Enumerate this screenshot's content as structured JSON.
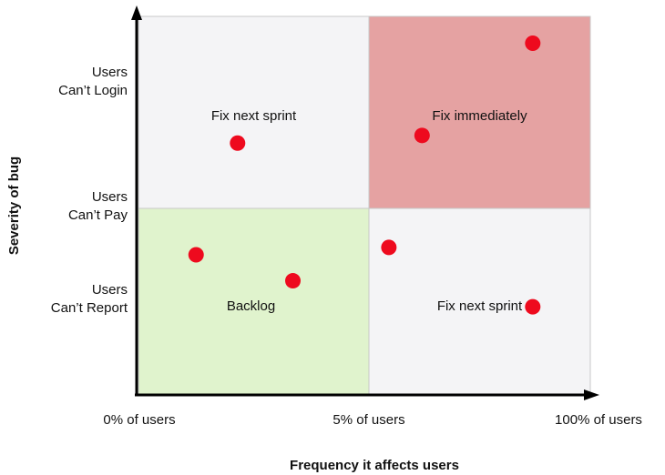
{
  "chart_data": {
    "type": "scatter",
    "xlabel": "Frequency it affects users",
    "ylabel": "Severity of bug",
    "x_ticks": [
      {
        "value": 0,
        "label": "0% of users"
      },
      {
        "value": 1,
        "label": "5% of users"
      },
      {
        "value": 2,
        "label": "100% of users"
      }
    ],
    "y_ticks": [
      {
        "value": 0.5,
        "lines": [
          "Users",
          "Can’t Report"
        ]
      },
      {
        "value": 1,
        "lines": [
          "Users",
          "Can’t Pay"
        ]
      },
      {
        "value": 1.65,
        "lines": [
          "Users",
          "Can’t Login"
        ]
      }
    ],
    "xlim": [
      0,
      2
    ],
    "ylim": [
      0,
      2
    ],
    "quadrants": [
      {
        "label": "Fix next sprint",
        "x": [
          0,
          1
        ],
        "y": [
          1,
          2
        ],
        "color": "#f4f4f6"
      },
      {
        "label": "Fix immediately",
        "x": [
          1,
          2
        ],
        "y": [
          1,
          2
        ],
        "color": "#e5a2a2"
      },
      {
        "label": "Backlog",
        "x": [
          0,
          1
        ],
        "y": [
          0,
          1
        ],
        "color": "#e0f3cd"
      },
      {
        "label": "Fix next sprint",
        "x": [
          1,
          2
        ],
        "y": [
          0,
          1
        ],
        "color": "#f4f4f6"
      }
    ],
    "points": [
      {
        "x": 1.74,
        "y": 1.86
      },
      {
        "x": 1.24,
        "y": 1.38
      },
      {
        "x": 0.43,
        "y": 1.34
      },
      {
        "x": 0.25,
        "y": 0.75
      },
      {
        "x": 0.67,
        "y": 0.61
      },
      {
        "x": 1.09,
        "y": 0.79
      },
      {
        "x": 1.74,
        "y": 0.47
      }
    ],
    "point_color": "#ee0a1e"
  }
}
